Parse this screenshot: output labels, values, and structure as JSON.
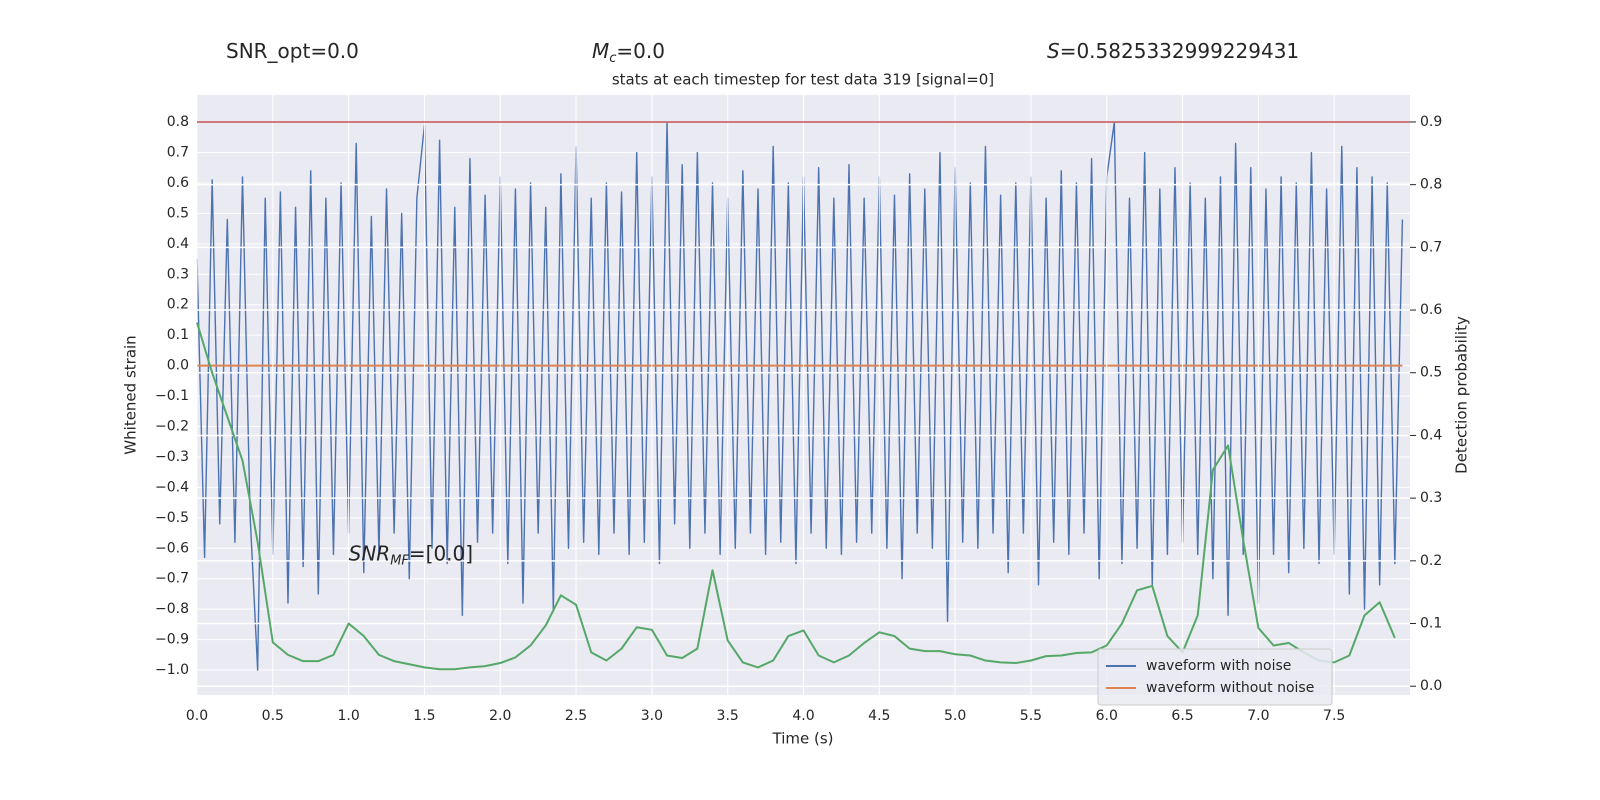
{
  "chart_data": {
    "type": "line",
    "title": "stats at each timestep for test data 319 [signal=0]",
    "header": [
      [
        "SNR_opt=0.0"
      ],
      [
        "M",
        "c",
        "=0.0"
      ],
      [
        "S",
        "=0.5825332999229431"
      ]
    ],
    "annotation": [
      "SNR",
      "MF",
      "=[0.0]"
    ],
    "xlabel": "Time (s)",
    "ylabel": "Whitened strain",
    "y2label": "Detection probability",
    "xlim": [
      0,
      8
    ],
    "ylim": [
      -1.082,
      0.889
    ],
    "y2lim": [
      -0.014,
      0.943
    ],
    "xticks": [
      {
        "value": 0,
        "label": "0.0"
      },
      0.5,
      {
        "value": 1,
        "label": "1.0"
      },
      1.5,
      {
        "value": 2,
        "label": "2.0"
      },
      2.5,
      {
        "value": 3,
        "label": "3.0"
      },
      3.5,
      {
        "value": 4,
        "label": "4.0"
      },
      4.5,
      {
        "value": 5,
        "label": "5.0"
      },
      5.5,
      {
        "value": 6,
        "label": "6.0"
      },
      6.5,
      {
        "value": 7,
        "label": "7.0"
      },
      7.5
    ],
    "yticks": [
      0.8,
      0.7,
      0.6,
      0.5,
      0.4,
      0.3,
      0.2,
      0.1,
      {
        "value": 0,
        "label": "0.0"
      },
      {
        "value": -0.1,
        "label": "−0.1"
      },
      {
        "value": -0.2,
        "label": "−0.2"
      },
      {
        "value": -0.3,
        "label": "−0.3"
      },
      {
        "value": -0.4,
        "label": "−0.4"
      },
      {
        "value": -0.5,
        "label": "−0.5"
      },
      {
        "value": -0.6,
        "label": "−0.6"
      },
      {
        "value": -0.7,
        "label": "−0.7"
      },
      {
        "value": -0.8,
        "label": "−0.8"
      },
      {
        "value": -0.9,
        "label": "−0.9"
      },
      {
        "value": -1,
        "label": "−1.0"
      }
    ],
    "y2ticks": [
      0.9,
      0.8,
      0.7,
      0.6,
      0.5,
      0.4,
      0.3,
      0.2,
      0.1,
      {
        "value": 0,
        "label": "0.0"
      }
    ],
    "grid": true,
    "legend": "lower right",
    "series": [
      {
        "name": "waveform with noise",
        "color": "#4c72b0",
        "axis": "y",
        "x": [
          0,
          0.05,
          0.1,
          0.15,
          0.2,
          0.25,
          0.3,
          0.35,
          0.4,
          0.45,
          0.5,
          0.55,
          0.6,
          0.65,
          0.7,
          0.75,
          0.8,
          0.85,
          0.9,
          0.95,
          1,
          1.05,
          1.1,
          1.15,
          1.2,
          1.25,
          1.3,
          1.35,
          1.4,
          1.45,
          1.5,
          1.55,
          1.6,
          1.65,
          1.7,
          1.75,
          1.8,
          1.85,
          1.9,
          1.95,
          2,
          2.05,
          2.1,
          2.15,
          2.2,
          2.25,
          2.3,
          2.35,
          2.4,
          2.45,
          2.5,
          2.55,
          2.6,
          2.65,
          2.7,
          2.75,
          2.8,
          2.85,
          2.9,
          2.95,
          3,
          3.05,
          3.1,
          3.15,
          3.2,
          3.25,
          3.3,
          3.35,
          3.4,
          3.45,
          3.5,
          3.55,
          3.6,
          3.65,
          3.7,
          3.75,
          3.8,
          3.85,
          3.9,
          3.95,
          4,
          4.05,
          4.1,
          4.15,
          4.2,
          4.25,
          4.3,
          4.35,
          4.4,
          4.45,
          4.5,
          4.55,
          4.6,
          4.65,
          4.7,
          4.75,
          4.8,
          4.85,
          4.9,
          4.95,
          5,
          5.05,
          5.1,
          5.15,
          5.2,
          5.25,
          5.3,
          5.35,
          5.4,
          5.45,
          5.5,
          5.55,
          5.6,
          5.65,
          5.7,
          5.75,
          5.8,
          5.85,
          5.9,
          5.95,
          6,
          6.05,
          6.1,
          6.15,
          6.2,
          6.25,
          6.3,
          6.35,
          6.4,
          6.45,
          6.5,
          6.55,
          6.6,
          6.65,
          6.7,
          6.75,
          6.8,
          6.85,
          6.9,
          6.95,
          7,
          7.05,
          7.1,
          7.15,
          7.2,
          7.25,
          7.3,
          7.35,
          7.4,
          7.45,
          7.5,
          7.55,
          7.6,
          7.65,
          7.7,
          7.75,
          7.8,
          7.85,
          7.9,
          7.95
        ],
        "values": [
          0.35,
          -0.63,
          0.61,
          -0.52,
          0.48,
          -0.58,
          0.62,
          -0.49,
          -1.0,
          0.55,
          -0.62,
          0.57,
          -0.78,
          0.52,
          -0.66,
          0.64,
          -0.75,
          0.55,
          -0.62,
          0.6,
          -0.55,
          0.73,
          -0.68,
          0.49,
          -0.62,
          0.58,
          -0.55,
          0.5,
          -0.7,
          0.55,
          0.79,
          -0.6,
          0.74,
          -0.65,
          0.52,
          -0.82,
          0.68,
          -0.58,
          0.56,
          -0.55,
          0.62,
          -0.65,
          0.58,
          -0.78,
          0.6,
          -0.55,
          0.52,
          -0.8,
          0.63,
          -0.6,
          0.72,
          -0.58,
          0.55,
          -0.62,
          0.6,
          -0.55,
          0.57,
          -0.62,
          0.7,
          -0.58,
          0.62,
          -0.65,
          0.8,
          -0.52,
          0.66,
          -0.6,
          0.7,
          -0.55,
          0.6,
          -0.62,
          0.55,
          -0.6,
          0.64,
          -0.55,
          0.58,
          -0.62,
          0.72,
          -0.58,
          0.6,
          -0.65,
          0.62,
          -0.55,
          0.65,
          -0.6,
          0.55,
          -0.62,
          0.66,
          -0.58,
          0.55,
          -0.55,
          0.62,
          -0.6,
          0.56,
          -0.7,
          0.63,
          -0.55,
          0.58,
          -0.6,
          0.7,
          -0.84,
          0.65,
          -0.58,
          0.6,
          -0.6,
          0.72,
          -0.55,
          0.56,
          -0.68,
          0.6,
          -0.55,
          0.62,
          -0.72,
          0.55,
          -0.58,
          0.64,
          -0.62,
          0.6,
          -0.55,
          0.68,
          -0.7,
          0.62,
          0.8,
          -0.65,
          0.55,
          -0.6,
          0.7,
          -0.72,
          0.58,
          -0.62,
          0.65,
          -0.58,
          0.6,
          -0.62,
          0.55,
          -0.7,
          0.62,
          -0.82,
          0.73,
          -0.62,
          0.65,
          -0.78,
          0.58,
          -0.62,
          0.62,
          -0.68,
          0.6,
          -0.6,
          0.7,
          -0.65,
          0.58,
          -0.62,
          0.72,
          -0.75,
          0.65,
          -0.8,
          0.62,
          -0.72,
          0.6,
          -0.65,
          0.48
        ]
      },
      {
        "name": "waveform without noise",
        "color": "#dd8452",
        "axis": "y",
        "x": [
          0,
          7.95
        ],
        "values": [
          0,
          0
        ]
      },
      {
        "color": "#55a868",
        "axis": "y2",
        "x": [
          0,
          0.1,
          0.2,
          0.3,
          0.4,
          0.5,
          0.6,
          0.7,
          0.8,
          0.9,
          1,
          1.1,
          1.2,
          1.3,
          1.4,
          1.5,
          1.6,
          1.7,
          1.8,
          1.9,
          2,
          2.1,
          2.2,
          2.3,
          2.4,
          2.5,
          2.6,
          2.7,
          2.8,
          2.9,
          3,
          3.1,
          3.2,
          3.3,
          3.4,
          3.5,
          3.6,
          3.7,
          3.8,
          3.9,
          4,
          4.1,
          4.2,
          4.3,
          4.4,
          4.5,
          4.6,
          4.7,
          4.8,
          4.9,
          5,
          5.1,
          5.2,
          5.3,
          5.4,
          5.5,
          5.6,
          5.7,
          5.8,
          5.9,
          6,
          6.1,
          6.2,
          6.3,
          6.4,
          6.5,
          6.6,
          6.7,
          6.8,
          6.9,
          7,
          7.1,
          7.2,
          7.3,
          7.4,
          7.5,
          7.6,
          7.7,
          7.8,
          7.9
        ],
        "values": [
          0.58,
          0.5,
          0.43,
          0.36,
          0.23,
          0.07,
          0.05,
          0.04,
          0.04,
          0.05,
          0.1,
          0.08,
          0.05,
          0.04,
          0.035,
          0.03,
          0.027,
          0.027,
          0.03,
          0.032,
          0.037,
          0.046,
          0.065,
          0.097,
          0.145,
          0.13,
          0.054,
          0.041,
          0.06,
          0.094,
          0.09,
          0.049,
          0.045,
          0.06,
          0.185,
          0.073,
          0.038,
          0.03,
          0.041,
          0.08,
          0.089,
          0.049,
          0.038,
          0.049,
          0.069,
          0.086,
          0.08,
          0.06,
          0.056,
          0.056,
          0.051,
          0.049,
          0.041,
          0.038,
          0.037,
          0.041,
          0.048,
          0.049,
          0.053,
          0.054,
          0.065,
          0.1,
          0.153,
          0.16,
          0.08,
          0.054,
          0.113,
          0.345,
          0.384,
          0.233,
          0.093,
          0.065,
          0.069,
          0.054,
          0.041,
          0.038,
          0.049,
          0.113,
          0.134,
          0.077
        ]
      }
    ],
    "hlines": [
      {
        "axis": "y2",
        "value": 0.9,
        "color": "#c44e52"
      }
    ]
  }
}
